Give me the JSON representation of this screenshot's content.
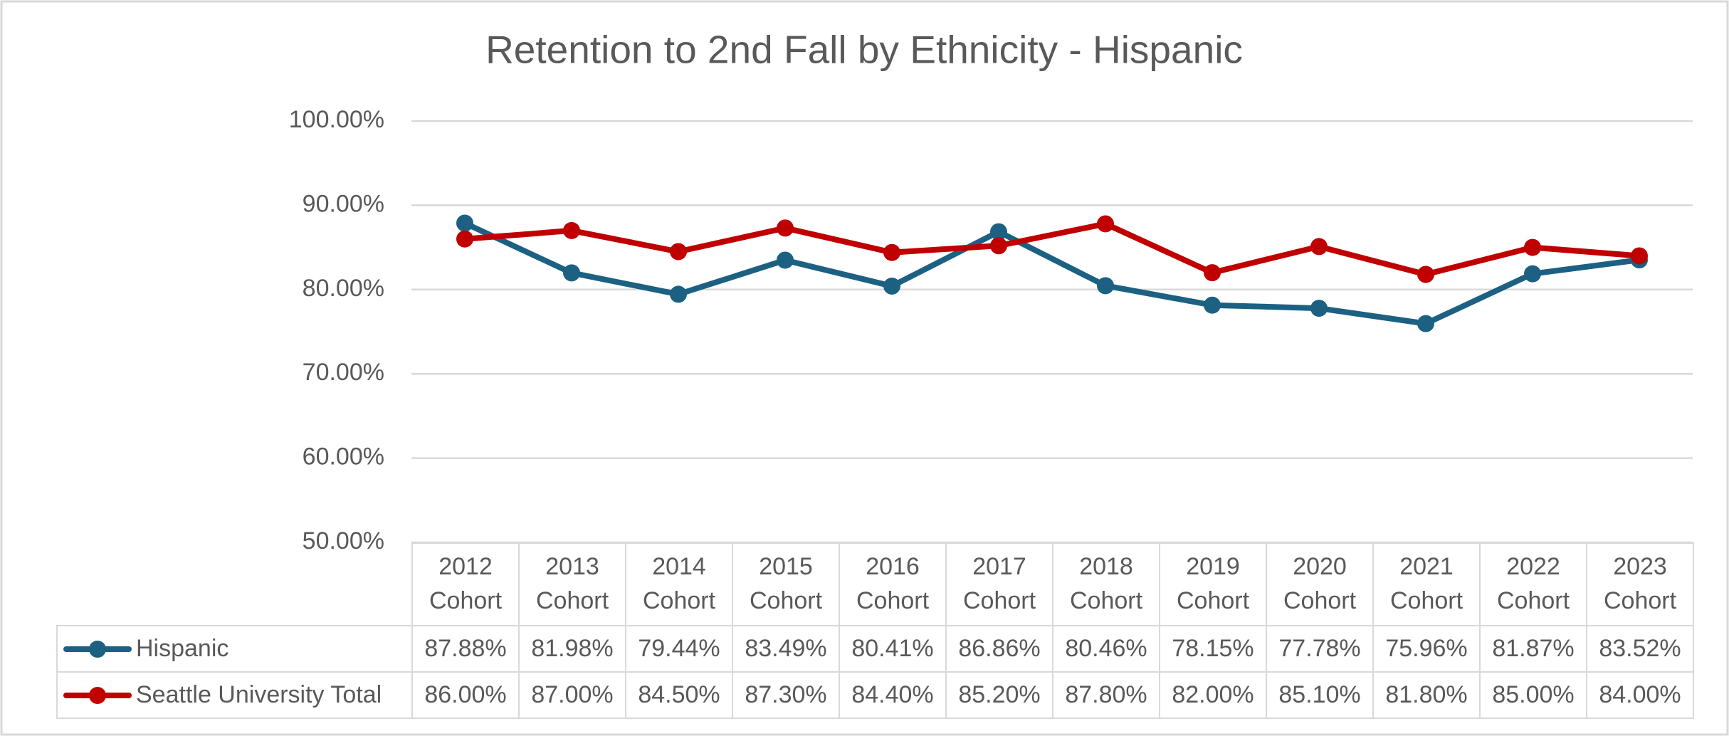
{
  "chart_data": {
    "type": "line",
    "title": "Retention to 2nd Fall by Ethnicity - Hispanic",
    "categories": [
      "2012 Cohort",
      "2013 Cohort",
      "2014 Cohort",
      "2015 Cohort",
      "2016 Cohort",
      "2017 Cohort",
      "2018 Cohort",
      "2019 Cohort",
      "2020 Cohort",
      "2021 Cohort",
      "2022 Cohort",
      "2023 Cohort"
    ],
    "series": [
      {
        "name": "Hispanic",
        "color": "#1c6182",
        "values": [
          87.88,
          81.98,
          79.44,
          83.49,
          80.41,
          86.86,
          80.46,
          78.15,
          77.78,
          75.96,
          81.87,
          83.52
        ],
        "value_labels": [
          "87.88%",
          "81.98%",
          "79.44%",
          "83.49%",
          "80.41%",
          "86.86%",
          "80.46%",
          "78.15%",
          "77.78%",
          "75.96%",
          "81.87%",
          "83.52%"
        ]
      },
      {
        "name": "Seattle University Total",
        "color": "#c00000",
        "values": [
          86.0,
          87.0,
          84.5,
          87.3,
          84.4,
          85.2,
          87.8,
          82.0,
          85.1,
          81.8,
          85.0,
          84.0
        ],
        "value_labels": [
          "86.00%",
          "87.00%",
          "84.50%",
          "87.30%",
          "84.40%",
          "85.20%",
          "87.80%",
          "82.00%",
          "85.10%",
          "81.80%",
          "85.00%",
          "84.00%"
        ]
      }
    ],
    "ylim": [
      50,
      100
    ],
    "yticks": [
      {
        "value": 50,
        "label": "50.00%"
      },
      {
        "value": 60,
        "label": "60.00%"
      },
      {
        "value": 70,
        "label": "70.00%"
      },
      {
        "value": 80,
        "label": "80.00%"
      },
      {
        "value": 90,
        "label": "90.00%"
      },
      {
        "value": 100,
        "label": "100.00%"
      }
    ],
    "grid": true
  }
}
